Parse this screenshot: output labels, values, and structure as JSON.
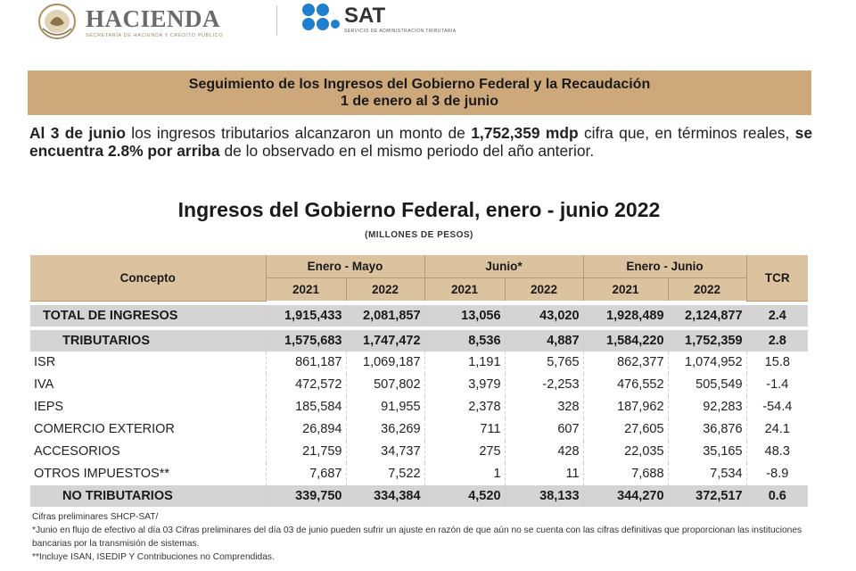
{
  "header": {
    "hacienda_title": "HACIENDA",
    "hacienda_subtitle": "SECRETARÍA DE HACIENDA Y CRÉDITO PÚBLICO",
    "sat_title": "SAT",
    "sat_subtitle": "SERVICIO DE ADMINISTRACIÓN TRIBUTARIA"
  },
  "banner": {
    "line1": "Seguimiento de los Ingresos del Gobierno Federal y la Recaudación",
    "line2": "1 de enero al 3 de junio"
  },
  "summary": {
    "s1": "Al 3 de junio",
    "s2": " los ingresos tributarios alcanzaron un monto de ",
    "s3": "1,752,359 mdp",
    "s4": " cifra que, en términos reales, ",
    "s5": "se encuentra 2.8% por arriba",
    "s6": " de lo observado en el mismo periodo del año anterior."
  },
  "table_title": "Ingresos del Gobierno Federal, enero - junio 2022",
  "table_units": "(MILLONES DE PESOS)",
  "columns": {
    "concept": "Concepto",
    "g1": "Enero - Mayo",
    "g2": "Junio*",
    "g3": "Enero - Junio",
    "tcr": "TCR",
    "y2021": "2021",
    "y2022": "2022"
  },
  "rows": [
    {
      "label": "TOTAL DE INGRESOS",
      "v": [
        "1,915,433",
        "2,081,857",
        "13,056",
        "43,020",
        "1,928,489",
        "2,124,877"
      ],
      "tcr": "2.4"
    },
    {
      "label": "TRIBUTARIOS",
      "v": [
        "1,575,683",
        "1,747,472",
        "8,536",
        "4,887",
        "1,584,220",
        "1,752,359"
      ],
      "tcr": "2.8"
    },
    {
      "label": "ISR",
      "v": [
        "861,187",
        "1,069,187",
        "1,191",
        "5,765",
        "862,377",
        "1,074,952"
      ],
      "tcr": "15.8"
    },
    {
      "label": "IVA",
      "v": [
        "472,572",
        "507,802",
        "3,979",
        "-2,253",
        "476,552",
        "505,549"
      ],
      "tcr": "-1.4"
    },
    {
      "label": "IEPS",
      "v": [
        "185,584",
        "91,955",
        "2,378",
        "328",
        "187,962",
        "92,283"
      ],
      "tcr": "-54.4"
    },
    {
      "label": "COMERCIO EXTERIOR",
      "v": [
        "26,894",
        "36,269",
        "711",
        "607",
        "27,605",
        "36,876"
      ],
      "tcr": "24.1"
    },
    {
      "label": "ACCESORIOS",
      "v": [
        "21,759",
        "34,737",
        "275",
        "428",
        "22,035",
        "35,165"
      ],
      "tcr": "48.3"
    },
    {
      "label": "OTROS IMPUESTOS**",
      "v": [
        "7,687",
        "7,522",
        "1",
        "11",
        "7,688",
        "7,534"
      ],
      "tcr": "-8.9"
    },
    {
      "label": "NO TRIBUTARIOS",
      "v": [
        "339,750",
        "334,384",
        "4,520",
        "38,133",
        "344,270",
        "372,517"
      ],
      "tcr": "0.6"
    }
  ],
  "notes": {
    "n1": "Cifras preliminares SHCP-SAT/",
    "n2": "*Junio en flujo de efectivo al día 03 Cifras preliminares del día 03 de junio pueden sufrir un ajuste en razón de que aún no se cuenta con las cifras definitivas que proporcionan las instituciones bancarias por la transmisión de sistemas.",
    "n3": "**Incluye ISAN, ISEDIP Y Contribuciones no Comprendidas."
  }
}
